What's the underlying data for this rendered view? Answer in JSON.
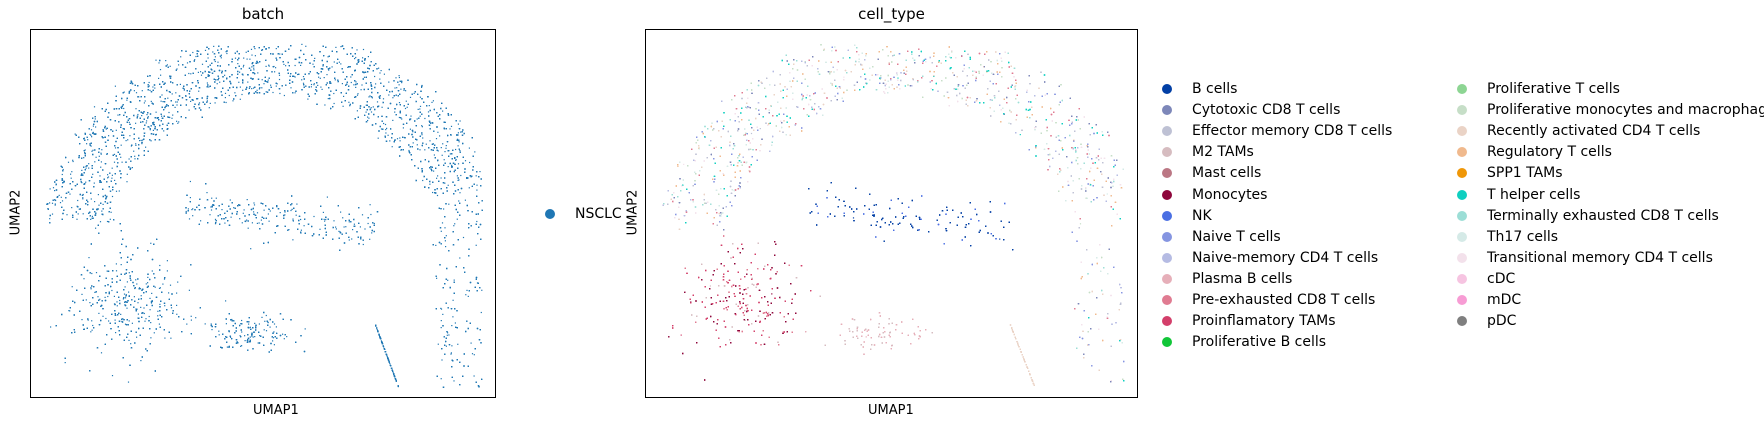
{
  "chart_data": [
    {
      "type": "scatter",
      "title": "batch",
      "xlabel": "UMAP1",
      "ylabel": "UMAP2",
      "legend_position": "right",
      "grid": false,
      "series": [
        {
          "name": "NSCLC",
          "color": "#1f77b4"
        }
      ]
    },
    {
      "type": "scatter",
      "title": "cell_type",
      "xlabel": "UMAP1",
      "ylabel": "UMAP2",
      "legend_position": "right",
      "grid": false,
      "series": [
        {
          "name": "B cells",
          "color": "#023fa5"
        },
        {
          "name": "Cytotoxic CD8 T cells",
          "color": "#7d87b9"
        },
        {
          "name": "Effector memory CD8 T cells",
          "color": "#bec1d4"
        },
        {
          "name": "M2 TAMs",
          "color": "#d6bcc0"
        },
        {
          "name": "Mast cells",
          "color": "#bb7784"
        },
        {
          "name": "Monocytes",
          "color": "#8e063b"
        },
        {
          "name": "NK",
          "color": "#4a6fe3"
        },
        {
          "name": "Naive T cells",
          "color": "#8595e1"
        },
        {
          "name": "Naive-memory CD4 T cells",
          "color": "#b5bbe3"
        },
        {
          "name": "Plasma B cells",
          "color": "#e6afb9"
        },
        {
          "name": "Pre-exhausted CD8 T cells",
          "color": "#e07b91"
        },
        {
          "name": "Proinflamatory TAMs",
          "color": "#d33f6a"
        },
        {
          "name": "Proliferative B cells",
          "color": "#11c638"
        },
        {
          "name": "Proliferative T cells",
          "color": "#8dd593"
        },
        {
          "name": "Proliferative monocytes and macrophages",
          "color": "#c6dec7"
        },
        {
          "name": "Recently activated CD4 T cells",
          "color": "#ead3c6"
        },
        {
          "name": "Regulatory T cells",
          "color": "#f0b98d"
        },
        {
          "name": "SPP1 TAMs",
          "color": "#ef9708"
        },
        {
          "name": "T helper cells",
          "color": "#0fcfc0"
        },
        {
          "name": "Terminally exhausted CD8 T cells",
          "color": "#9cded6"
        },
        {
          "name": "Th17 cells",
          "color": "#d5eae7"
        },
        {
          "name": "Transitional memory CD4 T cells",
          "color": "#f3e1eb"
        },
        {
          "name": "cDC",
          "color": "#f6c4e1"
        },
        {
          "name": "mDC",
          "color": "#f79cd4"
        },
        {
          "name": "pDC",
          "color": "#7f7f7f"
        }
      ]
    }
  ]
}
